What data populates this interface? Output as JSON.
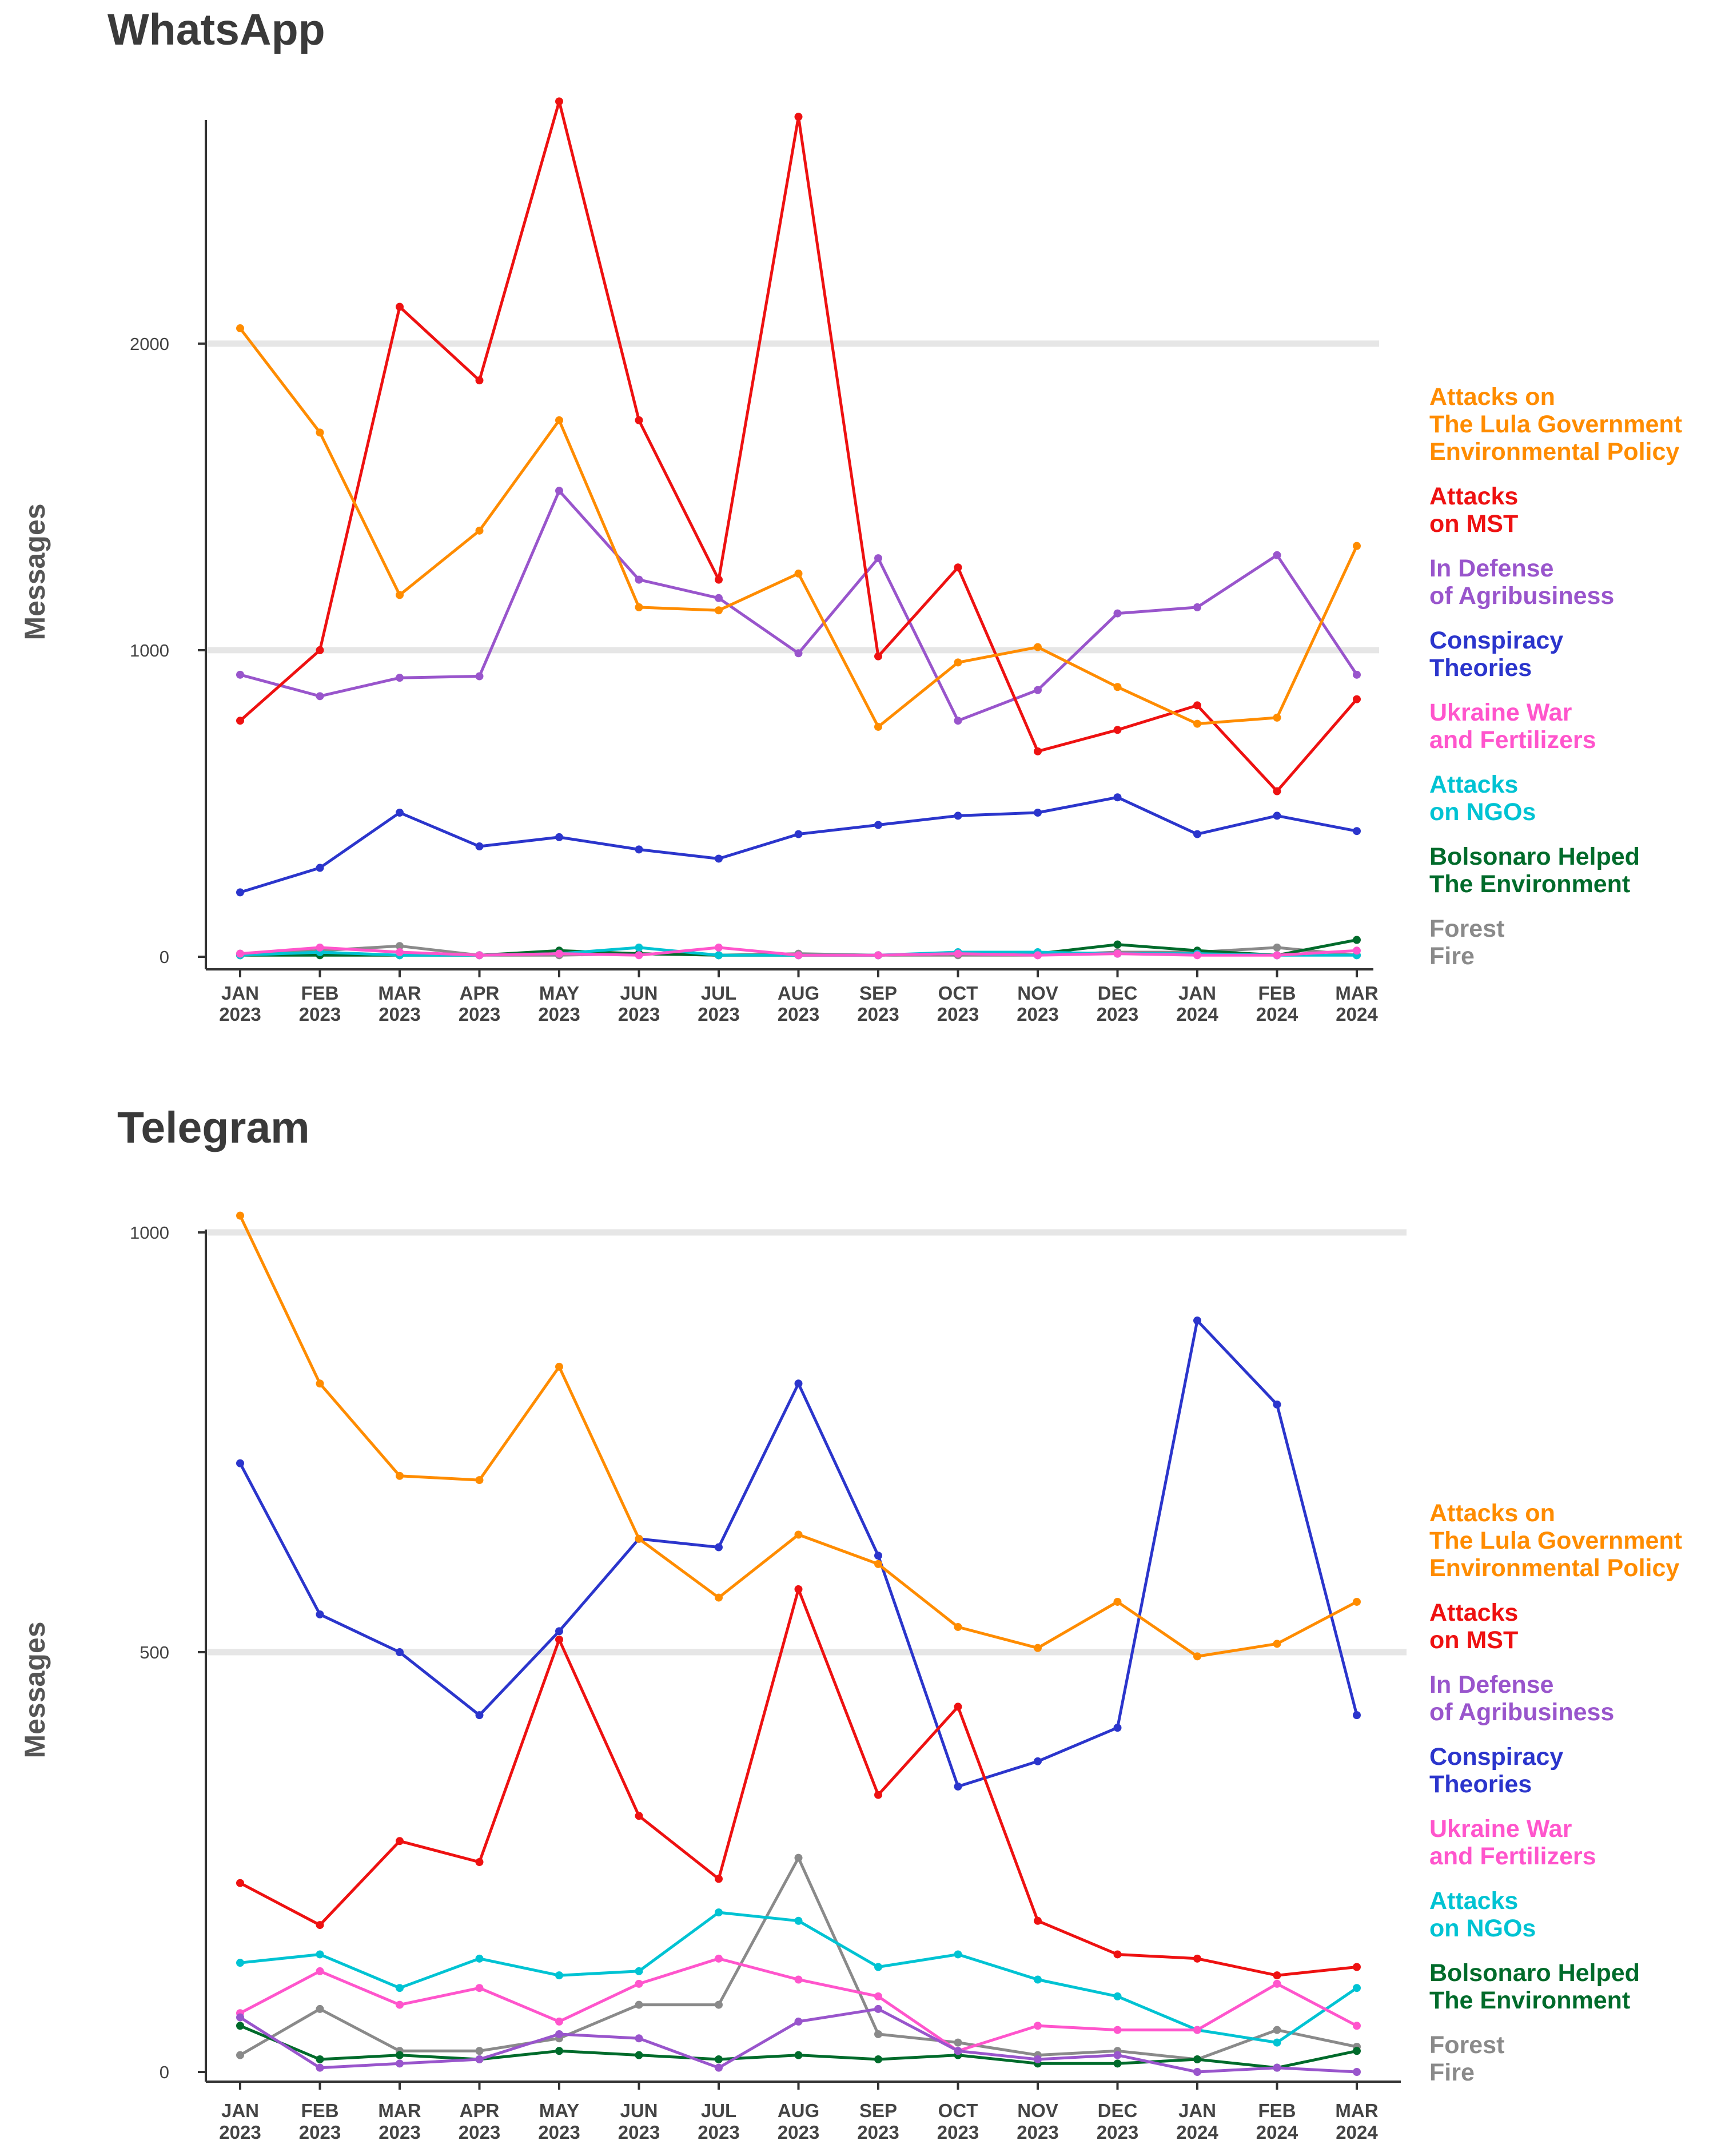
{
  "colors": {
    "Attacks on The Lula Government Environmental Policy": "#ff8c00",
    "Attacks on MST": "#ee1111",
    "In Defense of Agribusiness": "#9955cc",
    "Conspiracy Theories": "#2b35cc",
    "Ukraine War and Fertilizers": "#ff55cc",
    "Attacks on NGOs": "#00c3d3",
    "Bolsonaro Helped The Environment": "#006b2b",
    "Forest Fire": "#8a8a8a"
  },
  "chart_data": [
    {
      "type": "line",
      "title": "WhatsApp",
      "xlabel": "",
      "ylabel": "Messages",
      "ylim": [
        0,
        2800
      ],
      "yticks": [
        0,
        1000,
        2000
      ],
      "ytick_labels": [
        "0",
        "1000",
        "2000"
      ],
      "x_months": [
        "JAN",
        "FEB",
        "MAR",
        "APR",
        "MAY",
        "JUN",
        "JUL",
        "AUG",
        "SEP",
        "OCT",
        "NOV",
        "DEC",
        "JAN",
        "FEB",
        "MAR"
      ],
      "x_years": [
        "2023",
        "2023",
        "2023",
        "2023",
        "2023",
        "2023",
        "2023",
        "2023",
        "2023",
        "2023",
        "2023",
        "2023",
        "2024",
        "2024",
        "2024"
      ],
      "grid": true,
      "legend_position": "right",
      "series": [
        {
          "name": "Attacks on The Lula Government Environmental Policy",
          "legend_lines": [
            "Attacks on",
            "The Lula Government",
            "Environmental Policy"
          ],
          "values": [
            2050,
            1710,
            1180,
            1390,
            1750,
            1140,
            1130,
            1250,
            750,
            960,
            1010,
            880,
            760,
            780,
            1340
          ]
        },
        {
          "name": "Attacks on MST",
          "legend_lines": [
            "Attacks",
            "on MST"
          ],
          "values": [
            770,
            1000,
            2120,
            1880,
            2790,
            1750,
            1230,
            2740,
            980,
            1270,
            670,
            740,
            820,
            540,
            840
          ]
        },
        {
          "name": "In Defense of Agribusiness",
          "legend_lines": [
            "In Defense",
            "of Agribusiness"
          ],
          "values": [
            920,
            850,
            910,
            915,
            1520,
            1230,
            1170,
            990,
            1300,
            770,
            870,
            1120,
            1140,
            1310,
            920
          ]
        },
        {
          "name": "Conspiracy Theories",
          "legend_lines": [
            "Conspiracy",
            "Theories"
          ],
          "values": [
            210,
            290,
            470,
            360,
            390,
            350,
            320,
            400,
            430,
            460,
            470,
            520,
            400,
            460,
            410
          ]
        },
        {
          "name": "Ukraine War and Fertilizers",
          "legend_lines": [
            "Ukraine War",
            "and Fertilizers"
          ],
          "values": [
            10,
            30,
            15,
            5,
            10,
            5,
            30,
            5,
            5,
            10,
            5,
            10,
            5,
            5,
            20
          ]
        },
        {
          "name": "Attacks on NGOs",
          "legend_lines": [
            "Attacks",
            "on NGOs"
          ],
          "values": [
            5,
            15,
            5,
            5,
            10,
            30,
            5,
            5,
            5,
            15,
            15,
            10,
            10,
            5,
            5
          ]
        },
        {
          "name": "Bolsonaro Helped The Environment",
          "legend_lines": [
            "Bolsonaro Helped",
            "The Environment"
          ],
          "values": [
            5,
            5,
            5,
            5,
            20,
            10,
            5,
            5,
            5,
            10,
            10,
            40,
            20,
            5,
            55
          ]
        },
        {
          "name": "Forest Fire",
          "legend_lines": [
            "Forest",
            "Fire"
          ],
          "values": [
            10,
            20,
            35,
            5,
            5,
            10,
            5,
            10,
            5,
            5,
            5,
            15,
            15,
            30,
            5
          ]
        }
      ]
    },
    {
      "type": "line",
      "title": "Telegram",
      "xlabel": "",
      "ylabel": "Messages",
      "ylim": [
        0,
        1030
      ],
      "yticks": [
        0,
        500,
        1000
      ],
      "ytick_labels": [
        "0",
        "500",
        "1000"
      ],
      "x_months": [
        "JAN",
        "FEB",
        "MAR",
        "APR",
        "MAY",
        "JUN",
        "JUL",
        "AUG",
        "SEP",
        "OCT",
        "NOV",
        "DEC",
        "JAN",
        "FEB",
        "MAR"
      ],
      "x_years": [
        "2023",
        "2023",
        "2023",
        "2023",
        "2023",
        "2023",
        "2023",
        "2023",
        "2023",
        "2023",
        "2023",
        "2023",
        "2024",
        "2024",
        "2024"
      ],
      "grid": true,
      "legend_position": "right",
      "series": [
        {
          "name": "Attacks on The Lula Government Environmental Policy",
          "legend_lines": [
            "Attacks on",
            "The Lula Government",
            "Environmental Policy"
          ],
          "values": [
            1020,
            820,
            710,
            705,
            840,
            635,
            565,
            640,
            605,
            530,
            505,
            560,
            495,
            510,
            560
          ]
        },
        {
          "name": "Attacks on MST",
          "legend_lines": [
            "Attacks",
            "on MST"
          ],
          "values": [
            225,
            175,
            275,
            250,
            515,
            305,
            230,
            575,
            330,
            435,
            180,
            140,
            135,
            115,
            125
          ]
        },
        {
          "name": "In Defense of Agribusiness",
          "legend_lines": [
            "In Defense",
            "of Agribusiness"
          ],
          "values": [
            65,
            5,
            10,
            15,
            45,
            40,
            5,
            60,
            75,
            25,
            15,
            20,
            0,
            5,
            0
          ]
        },
        {
          "name": "Conspiracy Theories",
          "legend_lines": [
            "Conspiracy",
            "Theories"
          ],
          "values": [
            725,
            545,
            500,
            425,
            525,
            635,
            625,
            820,
            615,
            340,
            370,
            410,
            895,
            795,
            425
          ]
        },
        {
          "name": "Ukraine War and Fertilizers",
          "legend_lines": [
            "Ukraine War",
            "and Fertilizers"
          ],
          "values": [
            70,
            120,
            80,
            100,
            60,
            105,
            135,
            110,
            90,
            25,
            55,
            50,
            50,
            105,
            55
          ]
        },
        {
          "name": "Attacks on NGOs",
          "legend_lines": [
            "Attacks",
            "on NGOs"
          ],
          "values": [
            130,
            140,
            100,
            135,
            115,
            120,
            190,
            180,
            125,
            140,
            110,
            90,
            50,
            35,
            100
          ]
        },
        {
          "name": "Bolsonaro Helped The Environment",
          "legend_lines": [
            "Bolsonaro Helped",
            "The Environment"
          ],
          "values": [
            55,
            15,
            20,
            15,
            25,
            20,
            15,
            20,
            15,
            20,
            10,
            10,
            15,
            5,
            25
          ]
        },
        {
          "name": "Forest Fire",
          "legend_lines": [
            "Forest",
            "Fire"
          ],
          "values": [
            20,
            75,
            25,
            25,
            40,
            80,
            80,
            255,
            45,
            35,
            20,
            25,
            15,
            50,
            30
          ]
        }
      ]
    }
  ]
}
